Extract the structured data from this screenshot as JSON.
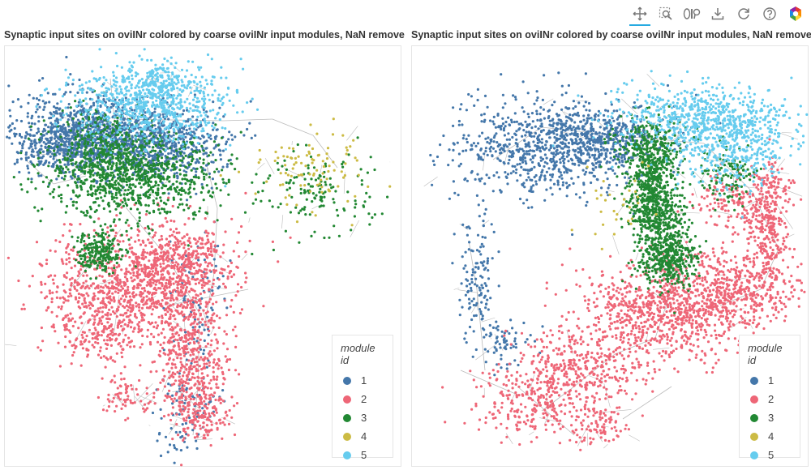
{
  "toolbar": {
    "tools": [
      {
        "name": "pan-tool",
        "active": true
      },
      {
        "name": "box-zoom-tool",
        "active": false
      },
      {
        "name": "wheel-zoom-tool",
        "active": false
      },
      {
        "name": "save-tool",
        "active": false
      },
      {
        "name": "reset-tool",
        "active": false
      },
      {
        "name": "help-tool",
        "active": false
      },
      {
        "name": "bokeh-logo",
        "active": false
      }
    ]
  },
  "colors": {
    "1": "#4477aa",
    "2": "#ee6677",
    "3": "#228833",
    "4": "#ccbb44",
    "5": "#66ccee",
    "skeleton": "#bbbbbb"
  },
  "chart_data": [
    {
      "type": "scatter",
      "title": "Synaptic input sites on oviINr colored by coarse oviINr input modules, NaN removed",
      "legend": {
        "title": "module id",
        "placement": "bottom-right",
        "entries": [
          "1",
          "2",
          "3",
          "4",
          "5"
        ]
      },
      "grid": false,
      "series": [
        {
          "name": "1",
          "regions": [
            "upper-left dense cluster (left edge to center)",
            "scattered along lower arbors"
          ]
        },
        {
          "name": "2",
          "regions": [
            "mid-left lobe",
            "descending lower column"
          ]
        },
        {
          "name": "3",
          "regions": [
            "upper cluster band",
            "mid-left knot",
            "right detached arbor"
          ]
        },
        {
          "name": "4",
          "regions": [
            "right detached arbor",
            "sparse along column"
          ]
        },
        {
          "name": "5",
          "regions": [
            "top of upper cluster"
          ]
        }
      ]
    },
    {
      "type": "scatter",
      "title": "Synaptic input sites on oviINr colored by coarse oviINr input modules, NaN removed",
      "legend": {
        "title": "module id",
        "placement": "bottom-right",
        "entries": [
          "1",
          "2",
          "3",
          "4",
          "5"
        ]
      },
      "grid": false,
      "series": [
        {
          "name": "1",
          "regions": [
            "upper arc (left side)",
            "left descending branch"
          ]
        },
        {
          "name": "2",
          "regions": [
            "right ring",
            "lower-center mass",
            "bottom arbors"
          ]
        },
        {
          "name": "3",
          "regions": [
            "center vertical trunk",
            "ring sections"
          ]
        },
        {
          "name": "4",
          "regions": [
            "sparse scattered"
          ]
        },
        {
          "name": "5",
          "regions": [
            "top-right arc"
          ]
        }
      ]
    }
  ]
}
